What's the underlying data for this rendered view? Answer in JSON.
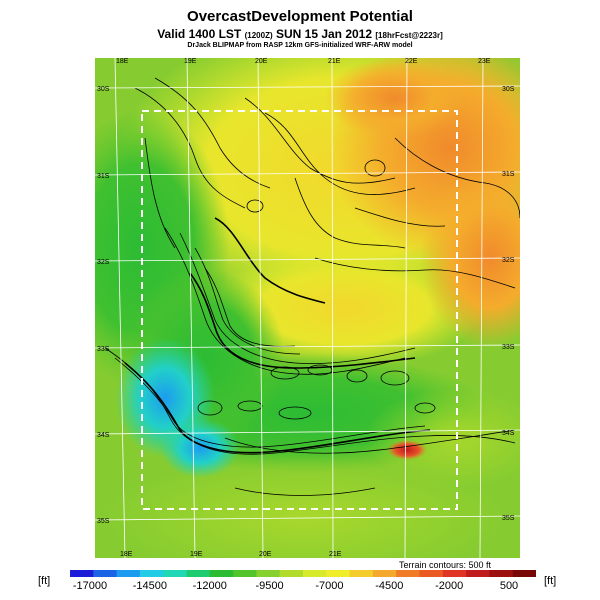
{
  "header": {
    "title": "OvercastDevelopment Potential",
    "valid_prefix": "Valid 1400 LST",
    "valid_utc": "(1200Z)",
    "valid_date": "SUN 15 Jan 2012",
    "forecast_info": "[18hrFcst@2223r]",
    "credit": "DrJack BLIPMAP from RASP 12km GFS-initialized WRF-ARW model"
  },
  "map": {
    "lon_labels_top": [
      "18E",
      "19E",
      "20E",
      "21E",
      "22E",
      "23E"
    ],
    "lon_labels_bottom": [
      "18E",
      "19E",
      "20E",
      "21E"
    ],
    "lat_labels_left": [
      "30S",
      "31S",
      "32S",
      "33S",
      "34S",
      "35S"
    ],
    "lat_labels_right": [
      "30S",
      "31S",
      "32S",
      "33S",
      "34S",
      "35S"
    ],
    "terrain_note": "Terrain contours: 500 ft"
  },
  "colorbar": {
    "unit_left": "[ft]",
    "unit_right": "[ft]",
    "labels": [
      "-17000",
      "-14500",
      "-12000",
      "-9500",
      "-7000",
      "-4500",
      "-2000",
      "500"
    ],
    "colors": [
      "#1c1cd8",
      "#1c64e6",
      "#1c9cf0",
      "#22cce6",
      "#22d8b4",
      "#1ccc6e",
      "#2cbc34",
      "#54c42c",
      "#86d030",
      "#b2dc2c",
      "#d8ea2c",
      "#f0ee2c",
      "#f4cc2c",
      "#f4a82c",
      "#f07c28",
      "#ec5a24",
      "#e03424",
      "#c01c1c",
      "#9c1010",
      "#780808"
    ]
  }
}
